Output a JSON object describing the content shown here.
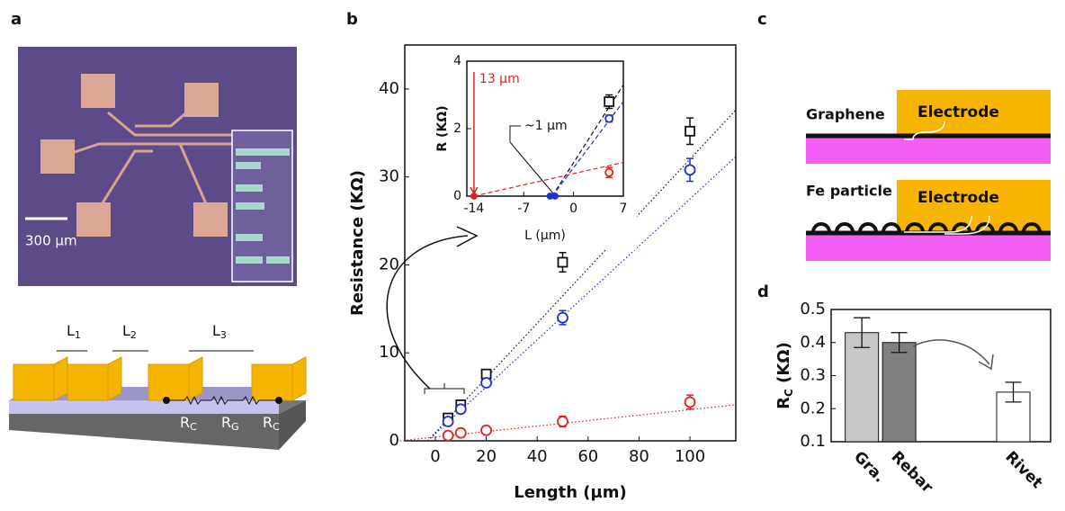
{
  "panel_labels": [
    "a",
    "b",
    "c",
    "d"
  ],
  "panel_a": {
    "scale_bar": "300 µm",
    "lengths": [
      [
        "L",
        "1"
      ],
      [
        "L",
        "2"
      ],
      [
        "L",
        "3"
      ]
    ],
    "resistors": [
      [
        "R",
        "C"
      ],
      [
        "R",
        "G"
      ],
      [
        "R",
        "C"
      ]
    ]
  },
  "panel_c": {
    "top": {
      "material": "Graphene",
      "electrode": "Electrode"
    },
    "bottom": {
      "material": "Fe particle",
      "electrode": "Electrode"
    }
  },
  "chart_data": [
    {
      "type": "scatter",
      "x_label": "Length (µm)",
      "y_label": "Resistance (KΩ)",
      "x": [
        5,
        10,
        20,
        50,
        100
      ],
      "xlim": [
        -12,
        118
      ],
      "xticks": [
        0,
        20,
        40,
        60,
        80,
        100
      ],
      "ylim": [
        0,
        45
      ],
      "yticks": [
        0,
        10,
        20,
        30,
        40
      ],
      "series": [
        {
          "color": "#111111",
          "marker": "square",
          "values": [
            2.6,
            4.1,
            7.6,
            20.3,
            35.2
          ],
          "errors": [
            0.3,
            0.4,
            0.5,
            1.1,
            1.5
          ]
        },
        {
          "color": "#1f2fd0",
          "marker": "circle",
          "values": [
            2.2,
            3.6,
            6.6,
            14.0,
            30.8
          ],
          "errors": [
            0.3,
            0.3,
            0.4,
            0.8,
            1.3
          ]
        },
        {
          "color": "#e02020",
          "marker": "circle",
          "values": [
            0.6,
            0.9,
            1.2,
            2.2,
            4.4
          ],
          "errors": [
            0.2,
            0.2,
            0.3,
            0.6,
            0.8
          ]
        }
      ],
      "fits": [
        {
          "color": "#111111",
          "x": [
            -3,
            118
          ],
          "values": [
            0,
            37.6
          ]
        },
        {
          "color": "#1f2fd0",
          "x": [
            -3,
            118
          ],
          "values": [
            0,
            32.3
          ]
        },
        {
          "color": "#e02020",
          "x": [
            -14,
            118
          ],
          "values": [
            0,
            4.1
          ]
        }
      ]
    },
    {
      "type": "scatter",
      "x_label": "L (µm)",
      "y_label": "R (KΩ)",
      "xlim": [
        -15,
        7
      ],
      "xticks": [
        -14,
        -7,
        0,
        7
      ],
      "ylim": [
        0,
        4
      ],
      "yticks": [
        0,
        2,
        4
      ],
      "series": [
        {
          "color": "#111111",
          "marker": "square",
          "x": [
            5
          ],
          "values": [
            2.8
          ],
          "errors": [
            0.2
          ]
        },
        {
          "color": "#1f2fd0",
          "marker": "circle",
          "x": [
            5
          ],
          "values": [
            2.3
          ],
          "errors": [
            0.1
          ]
        },
        {
          "color": "#e02020",
          "marker": "circle",
          "x": [
            5
          ],
          "values": [
            0.7
          ],
          "errors": [
            0.15
          ]
        },
        {
          "color": "#e02020",
          "marker": "dot",
          "x": [
            -14
          ],
          "values": [
            0
          ]
        },
        {
          "color": "#1f2fd0",
          "marker": "dot",
          "x": [
            -3.3,
            -2.6
          ],
          "values": [
            0,
            0
          ]
        }
      ],
      "fits": [
        {
          "color": "#111111",
          "dash": true,
          "x": [
            -3,
            7
          ],
          "values": [
            0,
            3.3
          ]
        },
        {
          "color": "#1f2fd0",
          "dash": true,
          "x": [
            -3,
            7
          ],
          "values": [
            0,
            2.8
          ]
        },
        {
          "color": "#e02020",
          "dash": true,
          "x": [
            -14,
            7
          ],
          "values": [
            0,
            1.0
          ]
        }
      ],
      "annotations": [
        {
          "text": "13 µm",
          "color": "#e02020"
        },
        {
          "text": "~1 µm",
          "color": "#111111"
        }
      ]
    },
    {
      "type": "bar",
      "y_label": [
        "R",
        "C",
        " (KΩ)"
      ],
      "categories": [
        "Gra.",
        "Rebar",
        "Rivet"
      ],
      "values": [
        0.43,
        0.4,
        0.25
      ],
      "errors": [
        0.045,
        0.03,
        0.03
      ],
      "colors": [
        "#c8c8c8",
        "#808080",
        "#ffffff"
      ],
      "ylim": [
        0.1,
        0.5
      ],
      "yticks": [
        0.1,
        0.2,
        0.3,
        0.4,
        0.5
      ]
    }
  ]
}
